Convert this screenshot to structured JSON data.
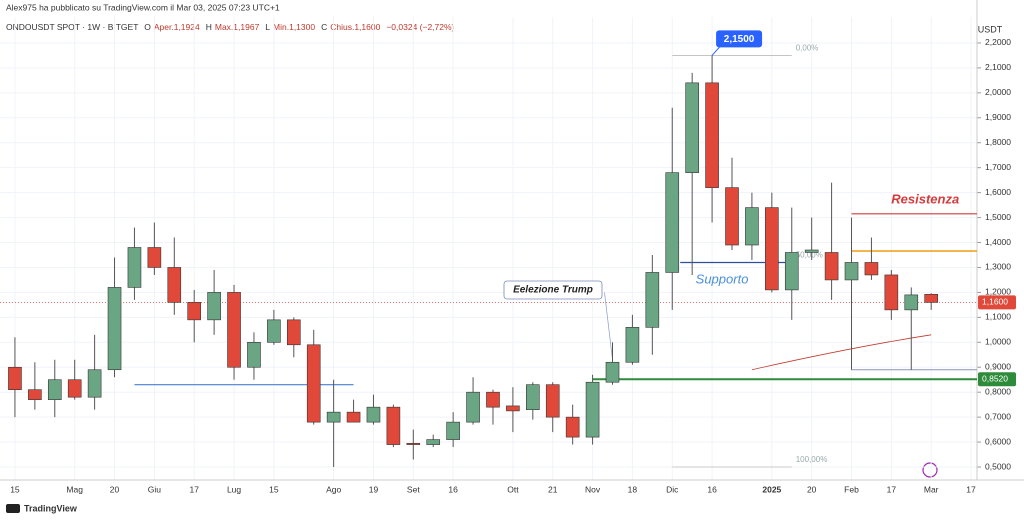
{
  "header": {
    "published": "Alex975 ha pubblicato su TradingView.com il Mar 03, 2025 07:23 UTC+1",
    "symbol": "ONDOUSDT SPOT · 1W · BITGET",
    "fields": [
      "O",
      "Aper.1,1924",
      "H",
      "Max.1,1967",
      "L",
      "Min.1,1300",
      "C",
      "Chius.1,1600",
      "−0,0324 (−2,72%)"
    ]
  },
  "footer": {
    "brand": "TradingView"
  },
  "chart_data": {
    "type": "candlestick",
    "y_unit": "USDT",
    "open": [
      0.9,
      0.81,
      0.77,
      0.85,
      0.78,
      0.89,
      1.22,
      1.38,
      1.3,
      1.16,
      1.09,
      1.2,
      0.9,
      1.0,
      1.09,
      0.99,
      0.68,
      0.72,
      0.68,
      0.74,
      0.595,
      0.59,
      0.61,
      0.68,
      0.8,
      0.745,
      0.73,
      0.83,
      0.7,
      0.62,
      0.84,
      0.92,
      1.06,
      1.28,
      1.68,
      2.04,
      1.62,
      1.39,
      1.54,
      1.21,
      1.36,
      1.36,
      1.25,
      1.32,
      1.27,
      1.13,
      1.1924
    ],
    "high": [
      1.02,
      0.92,
      0.93,
      0.93,
      1.03,
      1.34,
      1.46,
      1.48,
      1.42,
      1.21,
      1.29,
      1.23,
      1.04,
      1.13,
      1.1,
      1.05,
      0.85,
      0.77,
      0.79,
      0.75,
      0.65,
      0.63,
      0.72,
      0.86,
      0.81,
      0.82,
      0.84,
      0.84,
      0.75,
      0.87,
      1.0,
      1.11,
      1.35,
      1.94,
      2.08,
      2.15,
      1.74,
      1.6,
      1.6,
      1.54,
      1.5,
      1.64,
      1.5,
      1.42,
      1.29,
      1.22,
      1.1967
    ],
    "low": [
      0.7,
      0.73,
      0.7,
      0.77,
      0.73,
      0.86,
      1.17,
      1.27,
      1.11,
      1.0,
      1.03,
      0.85,
      0.85,
      0.99,
      0.94,
      0.67,
      0.5,
      0.68,
      0.67,
      0.58,
      0.53,
      0.58,
      0.58,
      0.67,
      0.67,
      0.64,
      0.69,
      0.64,
      0.59,
      0.59,
      0.83,
      0.91,
      0.95,
      1.13,
      1.27,
      1.48,
      1.37,
      1.33,
      1.2,
      1.09,
      1.33,
      1.17,
      0.89,
      1.25,
      1.09,
      0.89,
      1.13
    ],
    "close": [
      0.81,
      0.77,
      0.85,
      0.78,
      0.89,
      1.22,
      1.38,
      1.3,
      1.16,
      1.09,
      1.2,
      0.9,
      1.0,
      1.09,
      0.99,
      0.68,
      0.72,
      0.68,
      0.74,
      0.59,
      0.59,
      0.61,
      0.68,
      0.8,
      0.74,
      0.725,
      0.83,
      0.7,
      0.62,
      0.84,
      0.92,
      1.06,
      1.28,
      1.68,
      2.04,
      1.62,
      1.39,
      1.54,
      1.21,
      1.36,
      1.37,
      1.25,
      1.32,
      1.27,
      1.13,
      1.19,
      1.16
    ],
    "up_color": "#6aa584",
    "down_color": "#e0493a",
    "xlim": [
      -0.75,
      48.3
    ],
    "xticks": [
      {
        "value": 0,
        "label": "15"
      },
      {
        "value": 3,
        "label": "Mag"
      },
      {
        "value": 5,
        "label": "20"
      },
      {
        "value": 7,
        "label": "Giu"
      },
      {
        "value": 9,
        "label": "17"
      },
      {
        "value": 11,
        "label": "Lug"
      },
      {
        "value": 13,
        "label": "15"
      },
      {
        "value": 16,
        "label": "Ago"
      },
      {
        "value": 18,
        "label": "19"
      },
      {
        "value": 20,
        "label": "Set"
      },
      {
        "value": 22,
        "label": "16"
      },
      {
        "value": 25,
        "label": "Ott"
      },
      {
        "value": 27,
        "label": "21"
      },
      {
        "value": 29,
        "label": "Nov"
      },
      {
        "value": 31,
        "label": "18"
      },
      {
        "value": 33,
        "label": "Dic"
      },
      {
        "value": 35,
        "label": "16"
      },
      {
        "value": 38,
        "label": "2025"
      },
      {
        "value": 40,
        "label": "20"
      },
      {
        "value": 42,
        "label": "Feb"
      },
      {
        "value": 44,
        "label": "17"
      },
      {
        "value": 46,
        "label": "Mar"
      },
      {
        "value": 48,
        "label": "17"
      }
    ],
    "ylim": [
      0.448,
      2.304
    ],
    "yticks": [
      {
        "value": 2.2,
        "label": "2,2000"
      },
      {
        "value": 2.1,
        "label": "2,1000"
      },
      {
        "value": 2.0,
        "label": "2,0000"
      },
      {
        "value": 1.9,
        "label": "1,9000"
      },
      {
        "value": 1.8,
        "label": "1,8000"
      },
      {
        "value": 1.7,
        "label": "1,7000"
      },
      {
        "value": 1.6,
        "label": "1,6000"
      },
      {
        "value": 1.5,
        "label": "1,5000"
      },
      {
        "value": 1.4,
        "label": "1,4000"
      },
      {
        "value": 1.3,
        "label": "1,3000"
      },
      {
        "value": 1.2,
        "label": "1,2000"
      },
      {
        "value": 1.1,
        "label": "1,1000"
      },
      {
        "value": 1.0,
        "label": "1,0000"
      },
      {
        "value": 0.9,
        "label": "0,9000"
      },
      {
        "value": 0.8,
        "label": "0,8000"
      },
      {
        "value": 0.7,
        "label": "0,7000"
      },
      {
        "value": 0.6,
        "label": "0,6000"
      },
      {
        "value": 0.5,
        "label": "0,5000"
      }
    ],
    "grid": true,
    "last_price": {
      "value": 1.16,
      "label": "1,1600"
    },
    "support_level": {
      "value": 0.852,
      "label": "0,8520"
    },
    "peak": {
      "value": 2.15,
      "label": "2,1500"
    },
    "levels": {
      "old_support": 0.83,
      "supporto": 1.32,
      "resistenza": 1.515,
      "orange": 1.366,
      "lower_gray": 0.89
    },
    "fib": [
      {
        "value": 2.15,
        "label": "0,00%"
      },
      {
        "value": 1.32,
        "label": "50,00%"
      },
      {
        "value": 0.5,
        "label": "100,00%"
      }
    ],
    "annotations": {
      "resistenza": "Resistenza",
      "supporto": "Supporto",
      "event": "Eelezione Trump"
    }
  }
}
